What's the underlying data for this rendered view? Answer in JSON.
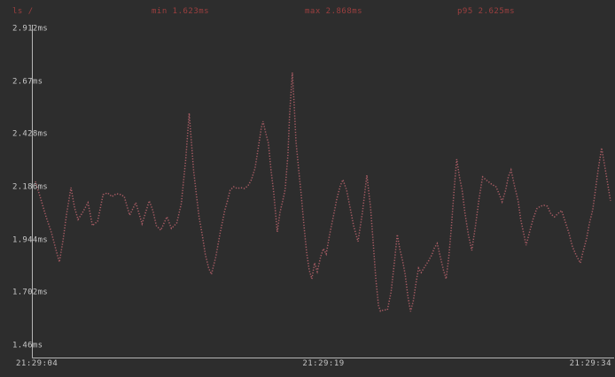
{
  "colors": {
    "background": "#2d2d2d",
    "axis": "#b5b5b5",
    "tick_text": "#c6c6c6",
    "header_text": "#9c3f3f",
    "series": "#a85c64"
  },
  "header": {
    "command": "ls /",
    "min": "min 1.623ms",
    "max": "max 2.868ms",
    "p95": "p95 2.625ms"
  },
  "chart_data": {
    "type": "line",
    "title": "ls /",
    "render_style": "braille-dotted-terminal",
    "xlabel": "",
    "ylabel": "",
    "grid": false,
    "legend_position": "none",
    "xlim_seconds": [
      0,
      30
    ],
    "ylim_ms": [
      1.46,
      2.912
    ],
    "x_tick_labels": [
      "21:29:04",
      "21:29:19",
      "21:29:34"
    ],
    "x_tick_seconds": [
      0,
      15,
      30
    ],
    "y_tick_labels": [
      "2.912ms",
      "2.67ms",
      "2.428ms",
      "2.186ms",
      "1.944ms",
      "1.702ms",
      "1.46ms"
    ],
    "y_tick_values": [
      2.912,
      2.67,
      2.428,
      2.186,
      1.944,
      1.702,
      1.46
    ],
    "stats": {
      "min_ms": 1.623,
      "max_ms": 2.868,
      "p95_ms": 2.625
    },
    "series": [
      {
        "name": "ls /",
        "color": "#a85c64",
        "points": [
          [
            0.09,
            2.214
          ],
          [
            0.37,
            2.133
          ],
          [
            0.64,
            2.052
          ],
          [
            0.92,
            1.979
          ],
          [
            1.15,
            1.902
          ],
          [
            1.33,
            1.845
          ],
          [
            1.52,
            1.943
          ],
          [
            1.7,
            2.064
          ],
          [
            1.93,
            2.186
          ],
          [
            2.12,
            2.093
          ],
          [
            2.3,
            2.04
          ],
          [
            2.53,
            2.072
          ],
          [
            2.81,
            2.117
          ],
          [
            3.04,
            2.012
          ],
          [
            3.31,
            2.032
          ],
          [
            3.59,
            2.154
          ],
          [
            3.82,
            2.162
          ],
          [
            4.05,
            2.145
          ],
          [
            4.28,
            2.158
          ],
          [
            4.51,
            2.154
          ],
          [
            4.69,
            2.145
          ],
          [
            4.97,
            2.06
          ],
          [
            5.29,
            2.117
          ],
          [
            5.61,
            2.02
          ],
          [
            5.98,
            2.125
          ],
          [
            6.17,
            2.081
          ],
          [
            6.35,
            2.012
          ],
          [
            6.58,
            1.991
          ],
          [
            6.9,
            2.052
          ],
          [
            7.13,
            1.999
          ],
          [
            7.41,
            2.024
          ],
          [
            7.64,
            2.113
          ],
          [
            7.87,
            2.316
          ],
          [
            8.05,
            2.527
          ],
          [
            8.28,
            2.263
          ],
          [
            8.42,
            2.154
          ],
          [
            8.56,
            2.052
          ],
          [
            8.74,
            1.963
          ],
          [
            8.88,
            1.882
          ],
          [
            9.06,
            1.817
          ],
          [
            9.2,
            1.789
          ],
          [
            9.43,
            1.87
          ],
          [
            9.66,
            1.983
          ],
          [
            9.76,
            2.024
          ],
          [
            9.89,
            2.081
          ],
          [
            10.03,
            2.125
          ],
          [
            10.17,
            2.174
          ],
          [
            10.35,
            2.19
          ],
          [
            10.54,
            2.182
          ],
          [
            10.72,
            2.186
          ],
          [
            10.9,
            2.182
          ],
          [
            11.09,
            2.194
          ],
          [
            11.27,
            2.222
          ],
          [
            11.46,
            2.275
          ],
          [
            11.64,
            2.377
          ],
          [
            11.78,
            2.458
          ],
          [
            11.87,
            2.49
          ],
          [
            12.01,
            2.437
          ],
          [
            12.15,
            2.389
          ],
          [
            12.29,
            2.263
          ],
          [
            12.42,
            2.166
          ],
          [
            12.61,
            1.983
          ],
          [
            12.75,
            2.072
          ],
          [
            12.88,
            2.121
          ],
          [
            13.02,
            2.178
          ],
          [
            13.16,
            2.336
          ],
          [
            13.25,
            2.519
          ],
          [
            13.39,
            2.713
          ],
          [
            13.48,
            2.571
          ],
          [
            13.58,
            2.397
          ],
          [
            13.71,
            2.275
          ],
          [
            13.85,
            2.154
          ],
          [
            13.99,
            2.012
          ],
          [
            14.13,
            1.89
          ],
          [
            14.26,
            1.809
          ],
          [
            14.4,
            1.768
          ],
          [
            14.54,
            1.841
          ],
          [
            14.68,
            1.801
          ],
          [
            14.86,
            1.87
          ],
          [
            15.0,
            1.906
          ],
          [
            15.14,
            1.882
          ],
          [
            15.32,
            1.971
          ],
          [
            15.51,
            2.052
          ],
          [
            15.69,
            2.133
          ],
          [
            15.87,
            2.194
          ],
          [
            16.01,
            2.222
          ],
          [
            16.2,
            2.174
          ],
          [
            16.38,
            2.093
          ],
          [
            16.56,
            2.012
          ],
          [
            16.79,
            1.939
          ],
          [
            17.02,
            2.072
          ],
          [
            17.25,
            2.243
          ],
          [
            17.44,
            2.093
          ],
          [
            17.58,
            1.93
          ],
          [
            17.71,
            1.768
          ],
          [
            17.85,
            1.646
          ],
          [
            17.95,
            1.62
          ],
          [
            18.13,
            1.626
          ],
          [
            18.31,
            1.626
          ],
          [
            18.5,
            1.707
          ],
          [
            18.68,
            1.849
          ],
          [
            18.82,
            1.971
          ],
          [
            18.96,
            1.902
          ],
          [
            19.1,
            1.849
          ],
          [
            19.23,
            1.789
          ],
          [
            19.37,
            1.687
          ],
          [
            19.51,
            1.618
          ],
          [
            19.65,
            1.667
          ],
          [
            19.79,
            1.748
          ],
          [
            19.92,
            1.817
          ],
          [
            20.06,
            1.797
          ],
          [
            20.25,
            1.825
          ],
          [
            20.43,
            1.849
          ],
          [
            20.61,
            1.878
          ],
          [
            20.75,
            1.91
          ],
          [
            20.89,
            1.93
          ],
          [
            21.07,
            1.861
          ],
          [
            21.21,
            1.809
          ],
          [
            21.35,
            1.768
          ],
          [
            21.49,
            1.87
          ],
          [
            21.63,
            2.012
          ],
          [
            21.76,
            2.174
          ],
          [
            21.9,
            2.316
          ],
          [
            22.04,
            2.235
          ],
          [
            22.18,
            2.174
          ],
          [
            22.32,
            2.072
          ],
          [
            22.5,
            1.971
          ],
          [
            22.68,
            1.898
          ],
          [
            22.87,
            2.012
          ],
          [
            23.05,
            2.133
          ],
          [
            23.24,
            2.235
          ],
          [
            23.47,
            2.218
          ],
          [
            23.7,
            2.202
          ],
          [
            23.93,
            2.19
          ],
          [
            24.11,
            2.154
          ],
          [
            24.25,
            2.121
          ],
          [
            24.43,
            2.174
          ],
          [
            24.57,
            2.235
          ],
          [
            24.71,
            2.267
          ],
          [
            24.89,
            2.194
          ],
          [
            25.08,
            2.125
          ],
          [
            25.21,
            2.04
          ],
          [
            25.35,
            1.983
          ],
          [
            25.49,
            1.922
          ],
          [
            25.67,
            1.983
          ],
          [
            25.86,
            2.044
          ],
          [
            26.04,
            2.089
          ],
          [
            26.23,
            2.101
          ],
          [
            26.41,
            2.105
          ],
          [
            26.59,
            2.101
          ],
          [
            26.78,
            2.064
          ],
          [
            26.96,
            2.052
          ],
          [
            27.15,
            2.068
          ],
          [
            27.33,
            2.081
          ],
          [
            27.51,
            2.032
          ],
          [
            27.7,
            1.979
          ],
          [
            27.88,
            1.918
          ],
          [
            28.07,
            1.878
          ],
          [
            28.3,
            1.841
          ],
          [
            28.43,
            1.89
          ],
          [
            28.62,
            1.951
          ],
          [
            28.76,
            2.02
          ],
          [
            28.94,
            2.085
          ],
          [
            29.08,
            2.174
          ],
          [
            29.22,
            2.267
          ],
          [
            29.4,
            2.368
          ],
          [
            29.54,
            2.295
          ],
          [
            29.68,
            2.222
          ],
          [
            29.86,
            2.125
          ]
        ]
      }
    ]
  }
}
